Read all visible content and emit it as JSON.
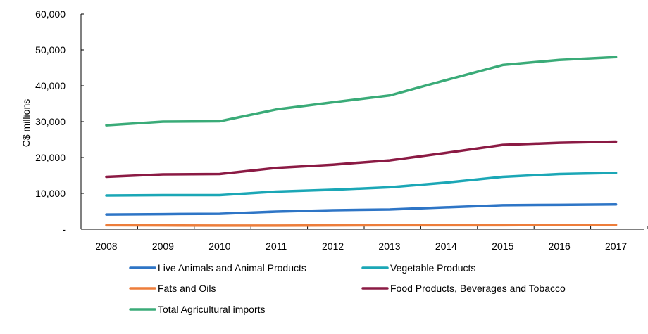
{
  "chart_data": {
    "type": "line",
    "title": "",
    "xlabel": "",
    "ylabel": "C$ millions",
    "ylim": [
      0,
      60000
    ],
    "yticks": [
      "-",
      "10,000",
      "20,000",
      "30,000",
      "40,000",
      "50,000",
      "60,000"
    ],
    "grid": false,
    "legend_position": "bottom",
    "categories": [
      "2008",
      "2009",
      "2010",
      "2011",
      "2012",
      "2013",
      "2014",
      "2015",
      "2016",
      "2017"
    ],
    "series": [
      {
        "name": "Live Animals and Animal Products",
        "color": "#2e75c6",
        "values": [
          4100,
          4200,
          4300,
          4900,
          5300,
          5500,
          6100,
          6700,
          6800,
          6900
        ]
      },
      {
        "name": "Vegetable Products",
        "color": "#1ba7b6",
        "values": [
          9400,
          9500,
          9500,
          10500,
          11000,
          11700,
          13000,
          14600,
          15400,
          15700
        ]
      },
      {
        "name": "Fats and Oils",
        "color": "#ed7d3a",
        "values": [
          1100,
          1050,
          1000,
          1000,
          1050,
          1100,
          1100,
          1100,
          1200,
          1200
        ]
      },
      {
        "name": "Food Products, Beverages and Tobacco",
        "color": "#8b1a44",
        "values": [
          14600,
          15300,
          15400,
          17100,
          18000,
          19200,
          21300,
          23500,
          24100,
          24400
        ]
      },
      {
        "name": "Total Agricultural imports",
        "color": "#3aab78",
        "values": [
          29000,
          30000,
          30100,
          33400,
          35400,
          37300,
          41600,
          45800,
          47200,
          48000
        ]
      }
    ]
  }
}
